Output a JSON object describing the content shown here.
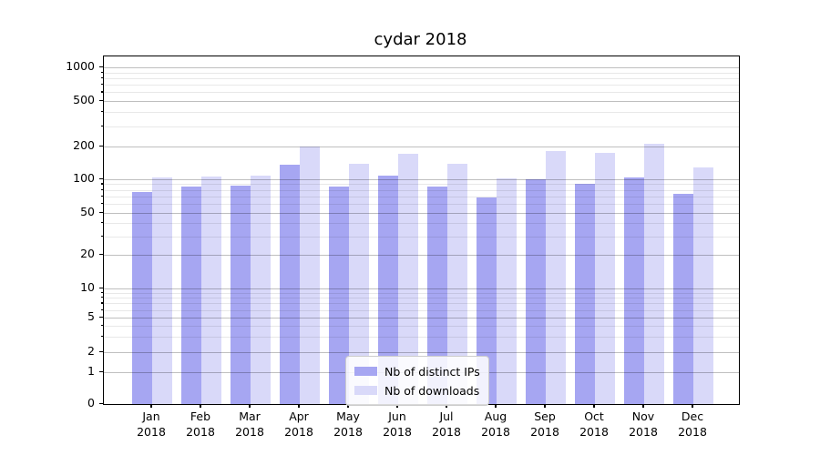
{
  "figure": {
    "title": "cydar 2018"
  },
  "legend": {
    "items": [
      {
        "label": "Nb of distinct IPs",
        "color": "#a6a6f2"
      },
      {
        "label": "Nb of downloads",
        "color": "#d9d9f9"
      }
    ]
  },
  "chart_data": {
    "type": "bar",
    "title": "cydar 2018",
    "categories": [
      "Jan 2018",
      "Feb 2018",
      "Mar 2018",
      "Apr 2018",
      "May 2018",
      "Jun 2018",
      "Jul 2018",
      "Aug 2018",
      "Sep 2018",
      "Oct 2018",
      "Nov 2018",
      "Dec 2018"
    ],
    "x_ticks": [
      {
        "month": "Jan",
        "year": "2018"
      },
      {
        "month": "Feb",
        "year": "2018"
      },
      {
        "month": "Mar",
        "year": "2018"
      },
      {
        "month": "Apr",
        "year": "2018"
      },
      {
        "month": "May",
        "year": "2018"
      },
      {
        "month": "Jun",
        "year": "2018"
      },
      {
        "month": "Jul",
        "year": "2018"
      },
      {
        "month": "Aug",
        "year": "2018"
      },
      {
        "month": "Sep",
        "year": "2018"
      },
      {
        "month": "Oct",
        "year": "2018"
      },
      {
        "month": "Nov",
        "year": "2018"
      },
      {
        "month": "Dec",
        "year": "2018"
      }
    ],
    "series": [
      {
        "name": "Nb of distinct IPs",
        "color": "#a6a6f2",
        "values": [
          76,
          85,
          87,
          136,
          85,
          108,
          86,
          69,
          100,
          91,
          103,
          74
        ]
      },
      {
        "name": "Nb of downloads",
        "color": "#d9d9f9",
        "values": [
          104,
          105,
          107,
          202,
          140,
          172,
          138,
          101,
          182,
          177,
          214,
          129
        ]
      }
    ],
    "xlabel": "",
    "ylabel": "",
    "y_ticks": [
      0,
      1,
      2,
      5,
      10,
      20,
      50,
      100,
      200,
      500,
      1000
    ],
    "y_scale": "log-like (compressed near zero)",
    "ylim": [
      0,
      1200
    ],
    "grid": true,
    "legend_position": "lower center"
  }
}
